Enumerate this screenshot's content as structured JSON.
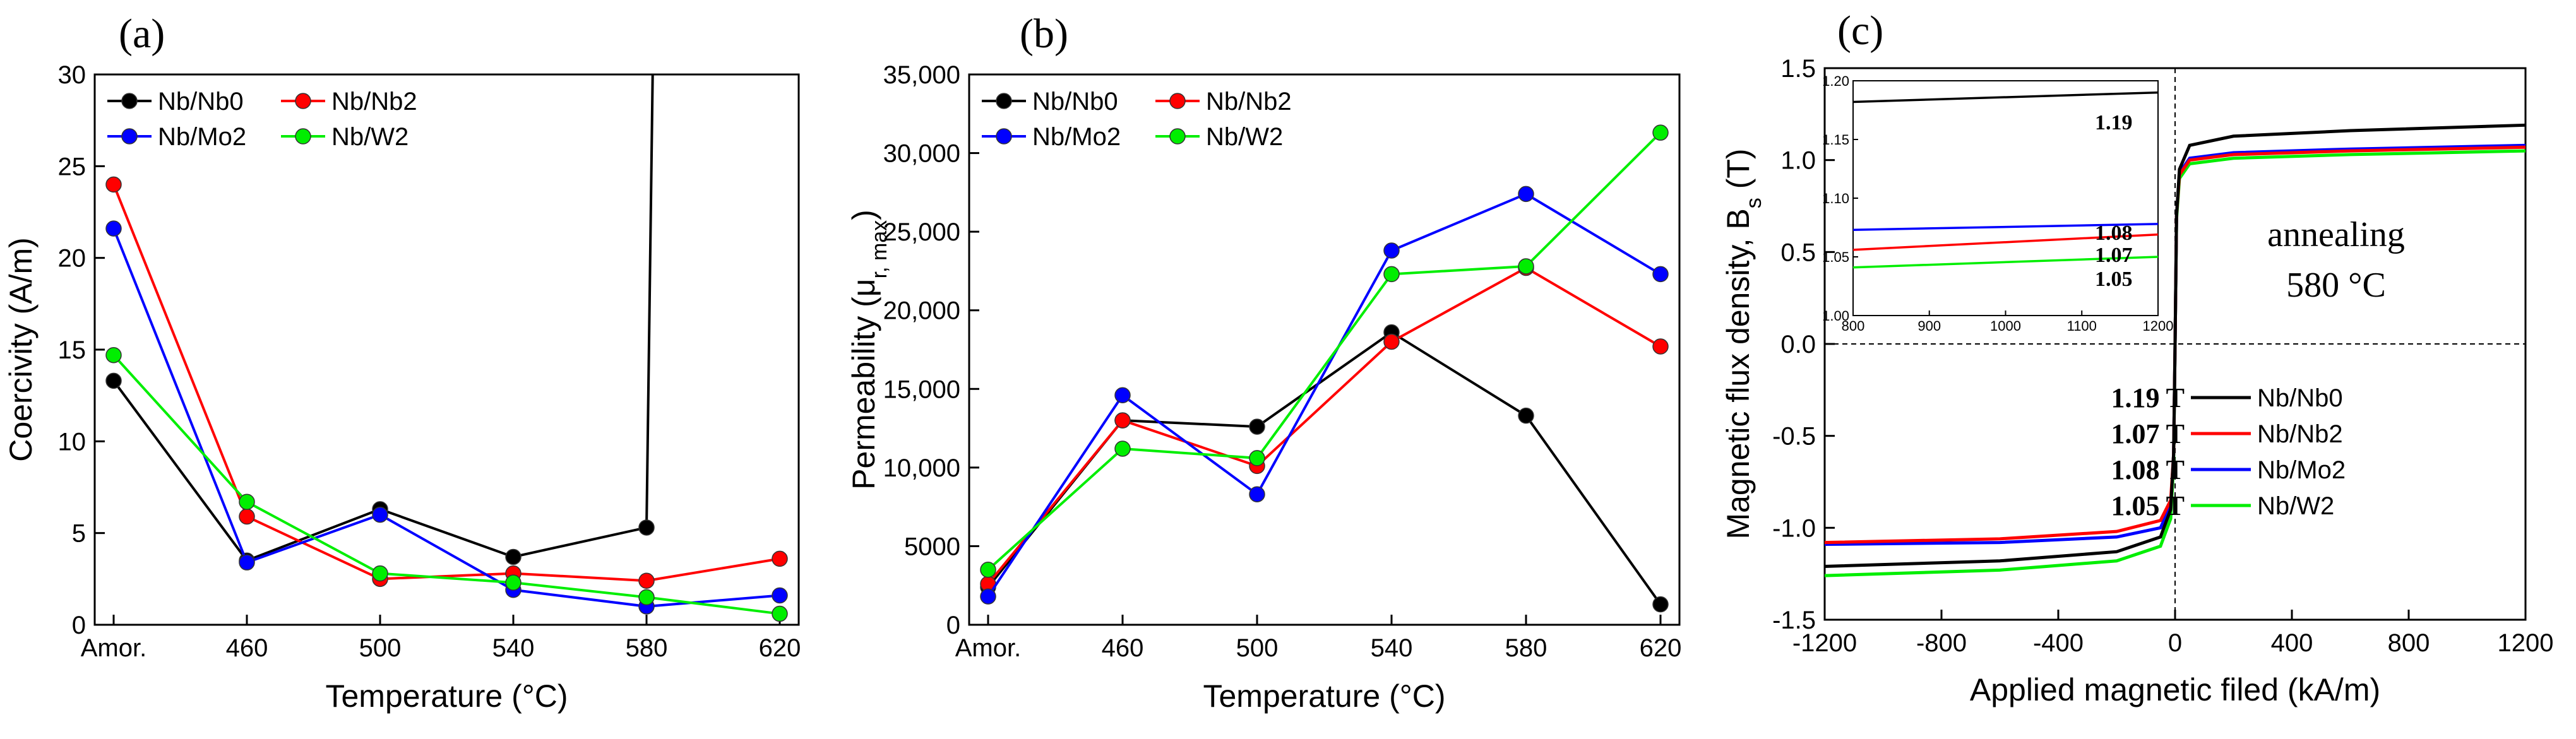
{
  "colors": {
    "Nb/Nb0": "#000000",
    "Nb/Nb2": "#ff0000",
    "Nb/Mo2": "#0000ff",
    "Nb/W2": "#00ee00"
  },
  "chart_data": [
    {
      "type": "line",
      "panel": "(a)",
      "xlabel": "Temperature (°C)",
      "ylabel": "Coercivity (A/m)",
      "categories": [
        "Amor.",
        "460",
        "500",
        "540",
        "580",
        "620"
      ],
      "yticks": [
        "0",
        "5",
        "10",
        "15",
        "20",
        "25",
        "30"
      ],
      "ylim": [
        0,
        30
      ],
      "series": [
        {
          "name": "Nb/Nb0",
          "values": [
            13.3,
            3.5,
            6.3,
            3.7,
            5.3,
            null
          ],
          "offscale_to": 30
        },
        {
          "name": "Nb/Nb2",
          "values": [
            24.0,
            5.9,
            2.5,
            2.8,
            2.4,
            3.6
          ]
        },
        {
          "name": "Nb/Mo2",
          "values": [
            21.6,
            3.4,
            6.0,
            1.9,
            1.0,
            1.6
          ]
        },
        {
          "name": "Nb/W2",
          "values": [
            14.7,
            6.7,
            2.8,
            2.3,
            1.5,
            0.6
          ]
        }
      ],
      "legend": [
        "Nb/Nb0",
        "Nb/Nb2",
        "Nb/Mo2",
        "Nb/W2"
      ],
      "legend_position": "top-left"
    },
    {
      "type": "line",
      "panel": "(b)",
      "xlabel": "Temperature (°C)",
      "ylabel": "Permeability (μ",
      "ylabel_sub": "r, max",
      "ylabel_close": ")",
      "categories": [
        "Amor.",
        "460",
        "500",
        "540",
        "580",
        "620"
      ],
      "yticks": [
        "0",
        "5000",
        "10,000",
        "15,000",
        "20,000",
        "25,000",
        "30,000",
        "35,000"
      ],
      "ylim": [
        0,
        35000
      ],
      "series": [
        {
          "name": "Nb/Nb0",
          "values": [
            2400,
            13000,
            12600,
            18600,
            13300,
            1300
          ]
        },
        {
          "name": "Nb/Nb2",
          "values": [
            2600,
            13000,
            10100,
            18000,
            22700,
            17700
          ]
        },
        {
          "name": "Nb/Mo2",
          "values": [
            1800,
            14600,
            8300,
            23800,
            27400,
            22300
          ]
        },
        {
          "name": "Nb/W2",
          "values": [
            3500,
            11200,
            10600,
            22300,
            22800,
            31300
          ]
        }
      ],
      "legend": [
        "Nb/Nb0",
        "Nb/Nb2",
        "Nb/Mo2",
        "Nb/W2"
      ],
      "legend_position": "top-left"
    },
    {
      "type": "line",
      "panel": "(c)",
      "xlabel": "Applied magnetic filed (kA/m)",
      "ylabel": "Magnetic flux density, B",
      "ylabel_sub": "s",
      "ylabel_close": " (T)",
      "xticks": [
        "-1200",
        "-800",
        "-400",
        "0",
        "400",
        "800",
        "1200"
      ],
      "yticks": [
        "-1.5",
        "-1.0",
        "-0.5",
        "0.0",
        "0.5",
        "1.0",
        "1.5"
      ],
      "xlim": [
        -1200,
        1200
      ],
      "ylim": [
        -1.5,
        1.5
      ],
      "annotation": [
        "annealing",
        "580 °C"
      ],
      "series": [
        {
          "name": "Nb/Nb0",
          "saturation_label": "1.19 T",
          "pos_points": [
            [
              0,
              0
            ],
            [
              5,
              0.7
            ],
            [
              15,
              0.95
            ],
            [
              50,
              1.08
            ],
            [
              200,
              1.13
            ],
            [
              600,
              1.16
            ],
            [
              1200,
              1.19
            ]
          ],
          "neg_points": [
            [
              -1200,
              -1.21
            ],
            [
              -600,
              -1.18
            ],
            [
              -200,
              -1.13
            ],
            [
              -50,
              -1.05
            ],
            [
              -15,
              -0.9
            ],
            [
              -5,
              -0.6
            ],
            [
              0,
              0
            ]
          ]
        },
        {
          "name": "Nb/Nb2",
          "saturation_label": "1.07 T",
          "pos_points": [
            [
              0,
              0
            ],
            [
              5,
              0.7
            ],
            [
              15,
              0.92
            ],
            [
              50,
              1.0
            ],
            [
              200,
              1.03
            ],
            [
              600,
              1.05
            ],
            [
              1200,
              1.07
            ]
          ],
          "neg_points": [
            [
              -1200,
              -1.08
            ],
            [
              -600,
              -1.06
            ],
            [
              -200,
              -1.02
            ],
            [
              -50,
              -0.96
            ],
            [
              -15,
              -0.85
            ],
            [
              -5,
              -0.6
            ],
            [
              0,
              0
            ]
          ]
        },
        {
          "name": "Nb/Mo2",
          "saturation_label": "1.08 T",
          "pos_points": [
            [
              0,
              0
            ],
            [
              5,
              0.7
            ],
            [
              15,
              0.93
            ],
            [
              50,
              1.01
            ],
            [
              200,
              1.04
            ],
            [
              600,
              1.06
            ],
            [
              1200,
              1.08
            ]
          ],
          "neg_points": [
            [
              -1200,
              -1.09
            ],
            [
              -600,
              -1.08
            ],
            [
              -200,
              -1.05
            ],
            [
              -50,
              -1.0
            ],
            [
              -15,
              -0.88
            ],
            [
              -5,
              -0.6
            ],
            [
              0,
              0
            ]
          ]
        },
        {
          "name": "Nb/W2",
          "saturation_label": "1.05 T",
          "pos_points": [
            [
              0,
              0
            ],
            [
              5,
              0.68
            ],
            [
              15,
              0.9
            ],
            [
              50,
              0.98
            ],
            [
              200,
              1.01
            ],
            [
              600,
              1.03
            ],
            [
              1200,
              1.05
            ]
          ],
          "neg_points": [
            [
              -1200,
              -1.26
            ],
            [
              -600,
              -1.23
            ],
            [
              -200,
              -1.18
            ],
            [
              -50,
              -1.1
            ],
            [
              -15,
              -0.95
            ],
            [
              -5,
              -0.65
            ],
            [
              0,
              0
            ]
          ]
        }
      ],
      "legend": [
        "Nb/Nb0",
        "Nb/Nb2",
        "Nb/Mo2",
        "Nb/W2"
      ],
      "legend_position": "bottom-right",
      "inset": {
        "xticks": [
          "800",
          "900",
          "1000",
          "1100",
          "1200"
        ],
        "yticks": [
          "1.00",
          "1.05",
          "1.10",
          "1.15",
          "1.20"
        ],
        "xlim": [
          800,
          1200
        ],
        "ylim": [
          1.0,
          1.2
        ],
        "series": [
          {
            "name": "Nb/Nb0",
            "values": [
              [
                800,
                1.182
              ],
              [
                1200,
                1.19
              ]
            ],
            "label": "1.19"
          },
          {
            "name": "Nb/Mo2",
            "values": [
              [
                800,
                1.073
              ],
              [
                1200,
                1.078
              ]
            ],
            "label": "1.08"
          },
          {
            "name": "Nb/Nb2",
            "values": [
              [
                800,
                1.056
              ],
              [
                1200,
                1.069
              ]
            ],
            "label": "1.07"
          },
          {
            "name": "Nb/W2",
            "values": [
              [
                800,
                1.041
              ],
              [
                1200,
                1.05
              ]
            ],
            "label": "1.05"
          }
        ]
      }
    }
  ]
}
